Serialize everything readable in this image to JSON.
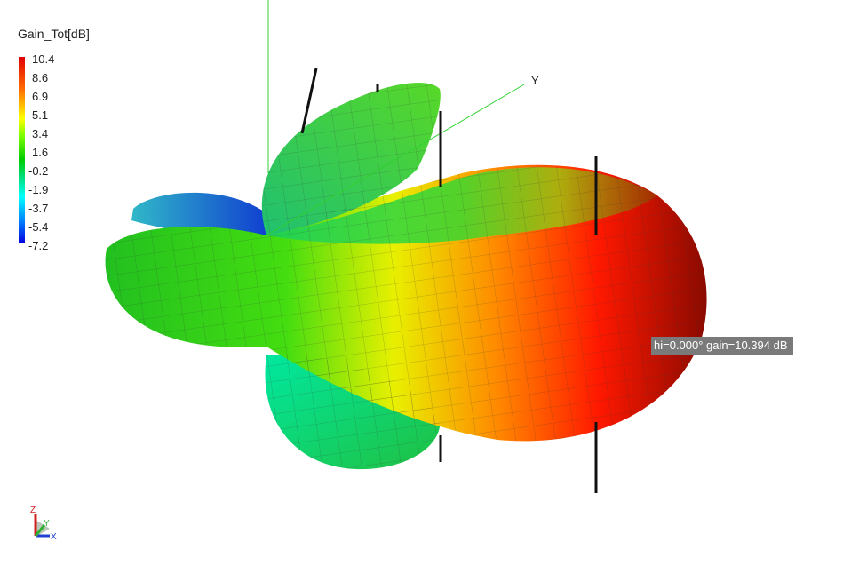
{
  "chart_data": {
    "type": "surface",
    "title": "Gain_Tot[dB]",
    "colorbar": {
      "ticks": [
        "10.4",
        "8.6",
        "6.9",
        "5.1",
        "3.4",
        "1.6",
        "-0.2",
        "-1.9",
        "-3.7",
        "-5.4",
        "-7.2"
      ],
      "range": [
        -7.2,
        10.4
      ],
      "colors": [
        "#e00000",
        "#ff6a00",
        "#ffff00",
        "#00cc00",
        "#00ffff",
        "#0000e0"
      ]
    },
    "axes": {
      "y_label": "Y",
      "triad": {
        "x": "X",
        "y": "Y",
        "z": "Z"
      }
    },
    "marker": {
      "text": "hi=0.000° gain=10.394 dB",
      "gain_db": 10.394
    }
  }
}
